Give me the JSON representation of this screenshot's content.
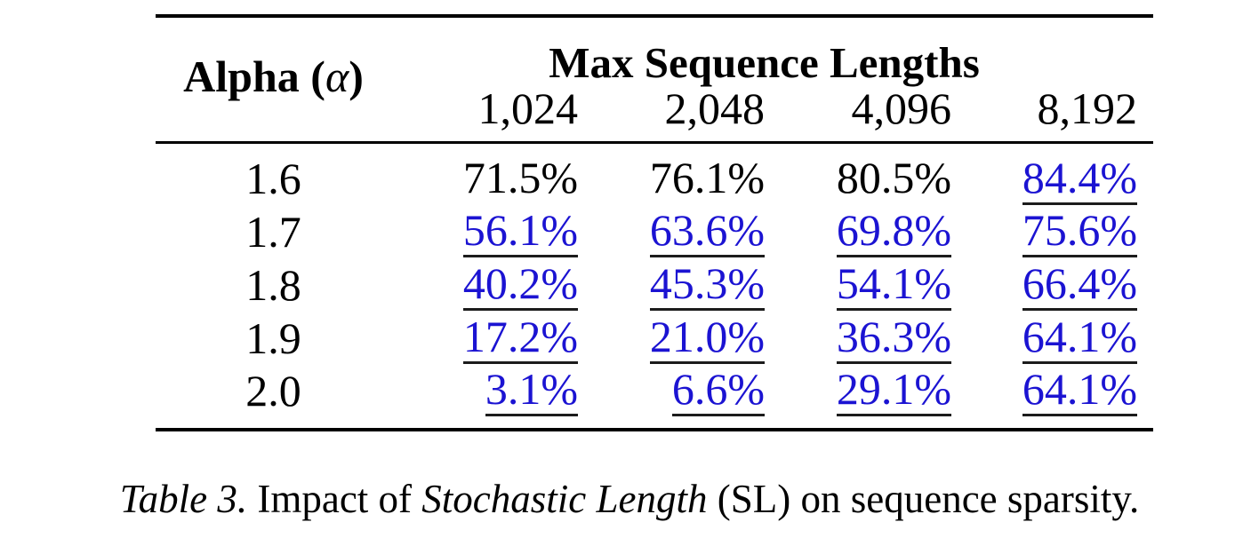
{
  "colors": {
    "highlight_blue": "#1b13d2",
    "underline_dark": "#1c1c1c",
    "text": "#000000",
    "background": "#ffffff",
    "rule": "#000000"
  },
  "table": {
    "row_header_label": "Alpha",
    "row_header_symbol_open": "(",
    "row_header_symbol": "α",
    "row_header_symbol_close": ")",
    "group_header": "Max Sequence Lengths",
    "columns": [
      "1,024",
      "2,048",
      "4,096",
      "8,192"
    ],
    "rows": [
      {
        "alpha": "1.6",
        "values": [
          "71.5%",
          "76.1%",
          "80.5%",
          "84.4%"
        ],
        "highlighted": [
          false,
          false,
          false,
          true
        ]
      },
      {
        "alpha": "1.7",
        "values": [
          "56.1%",
          "63.6%",
          "69.8%",
          "75.6%"
        ],
        "highlighted": [
          true,
          true,
          true,
          true
        ]
      },
      {
        "alpha": "1.8",
        "values": [
          "40.2%",
          "45.3%",
          "54.1%",
          "66.4%"
        ],
        "highlighted": [
          true,
          true,
          true,
          true
        ]
      },
      {
        "alpha": "1.9",
        "values": [
          "17.2%",
          "21.0%",
          "36.3%",
          "64.1%"
        ],
        "highlighted": [
          true,
          true,
          true,
          true
        ]
      },
      {
        "alpha": "2.0",
        "values": [
          "3.1%",
          "6.6%",
          "29.1%",
          "64.1%"
        ],
        "highlighted": [
          true,
          true,
          true,
          true
        ]
      }
    ]
  },
  "caption": {
    "segments": [
      {
        "text": "Table 3.",
        "italic": true
      },
      {
        "text": " Impact of ",
        "italic": false
      },
      {
        "text": "Stochastic Length",
        "italic": true
      },
      {
        "text": " (SL) on sequence sparsity.",
        "italic": false
      }
    ]
  }
}
